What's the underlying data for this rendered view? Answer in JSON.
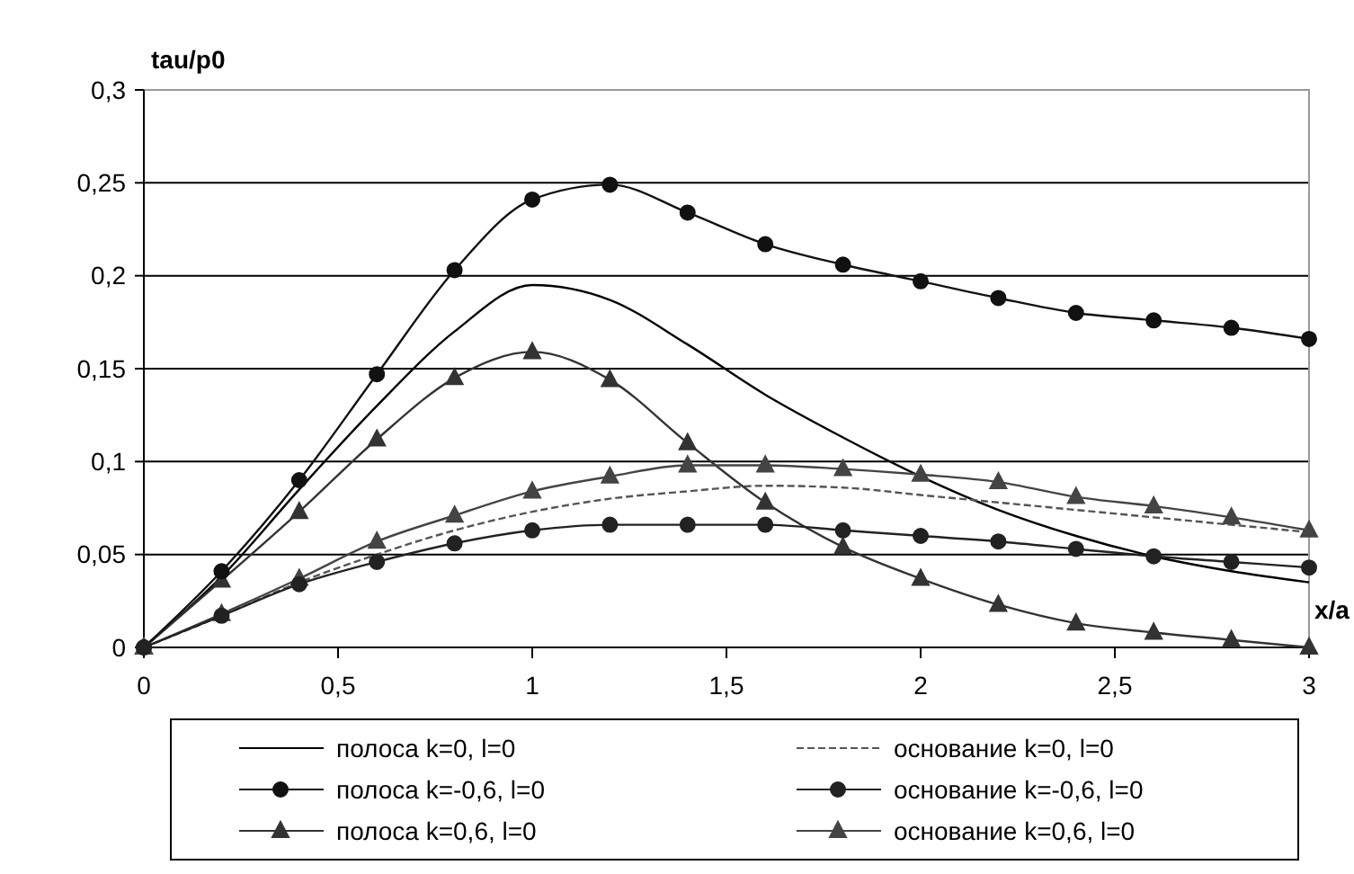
{
  "chart_data": {
    "type": "line",
    "xlabel": "x/a",
    "ylabel": "tau/p0",
    "x": [
      0,
      0.2,
      0.4,
      0.6,
      0.8,
      1,
      1.2,
      1.4,
      1.6,
      1.8,
      2,
      2.2,
      2.4,
      2.6,
      2.8,
      3
    ],
    "series": [
      {
        "name": "полоса k=0, l=0",
        "color": "#000000",
        "marker": "none",
        "line_style": "solid",
        "values": [
          0,
          0.038,
          0.085,
          0.13,
          0.17,
          0.195,
          0.187,
          0.163,
          0.136,
          0.113,
          0.092,
          0.074,
          0.06,
          0.049,
          0.041,
          0.035
        ]
      },
      {
        "name": "основание k=0, l=0",
        "color": "#555555",
        "marker": "none",
        "line_style": "dashed",
        "values": [
          0,
          0.017,
          0.035,
          0.05,
          0.063,
          0.073,
          0.08,
          0.084,
          0.087,
          0.086,
          0.082,
          0.078,
          0.074,
          0.07,
          0.066,
          0.062
        ]
      },
      {
        "name": "полоса k=-0,6, l=0",
        "color": "#111111",
        "marker": "circle",
        "line_style": "solid",
        "values": [
          0,
          0.041,
          0.09,
          0.147,
          0.203,
          0.241,
          0.249,
          0.234,
          0.217,
          0.206,
          0.197,
          0.188,
          0.18,
          0.176,
          0.172,
          0.166
        ]
      },
      {
        "name": "основание k=-0,6, l=0",
        "color": "#222222",
        "marker": "circle",
        "line_style": "solid",
        "values": [
          0,
          0.017,
          0.034,
          0.046,
          0.056,
          0.063,
          0.066,
          0.066,
          0.066,
          0.063,
          0.06,
          0.057,
          0.053,
          0.049,
          0.046,
          0.043
        ]
      },
      {
        "name": "полоса k=0,6, l=0",
        "color": "#333333",
        "marker": "triangle",
        "line_style": "solid",
        "values": [
          0,
          0.036,
          0.073,
          0.112,
          0.145,
          0.159,
          0.144,
          0.11,
          0.078,
          0.054,
          0.037,
          0.023,
          0.013,
          0.008,
          0.004,
          0
        ]
      },
      {
        "name": "основание k=0,6, l=0",
        "color": "#444444",
        "marker": "triangle",
        "line_style": "solid",
        "values": [
          0,
          0.018,
          0.037,
          0.057,
          0.071,
          0.084,
          0.092,
          0.098,
          0.098,
          0.096,
          0.093,
          0.089,
          0.081,
          0.076,
          0.07,
          0.063
        ]
      }
    ],
    "xlim": [
      0,
      3
    ],
    "xticks": [
      0,
      {
        "value": 0.5,
        "label": "0,5"
      },
      1,
      {
        "value": 1.5,
        "label": "1,5"
      },
      2,
      {
        "value": 2.5,
        "label": "2,5"
      },
      3
    ],
    "ylim": [
      0,
      0.3
    ],
    "yticks": [
      0,
      {
        "value": 0.05,
        "label": "0,05"
      },
      {
        "value": 0.1,
        "label": "0,1"
      },
      {
        "value": 0.15,
        "label": "0,15"
      },
      {
        "value": 0.2,
        "label": "0,2"
      },
      {
        "value": 0.25,
        "label": "0,25"
      },
      {
        "value": 0.3,
        "label": "0,3"
      }
    ],
    "grid": "y",
    "legend": "bottom"
  }
}
